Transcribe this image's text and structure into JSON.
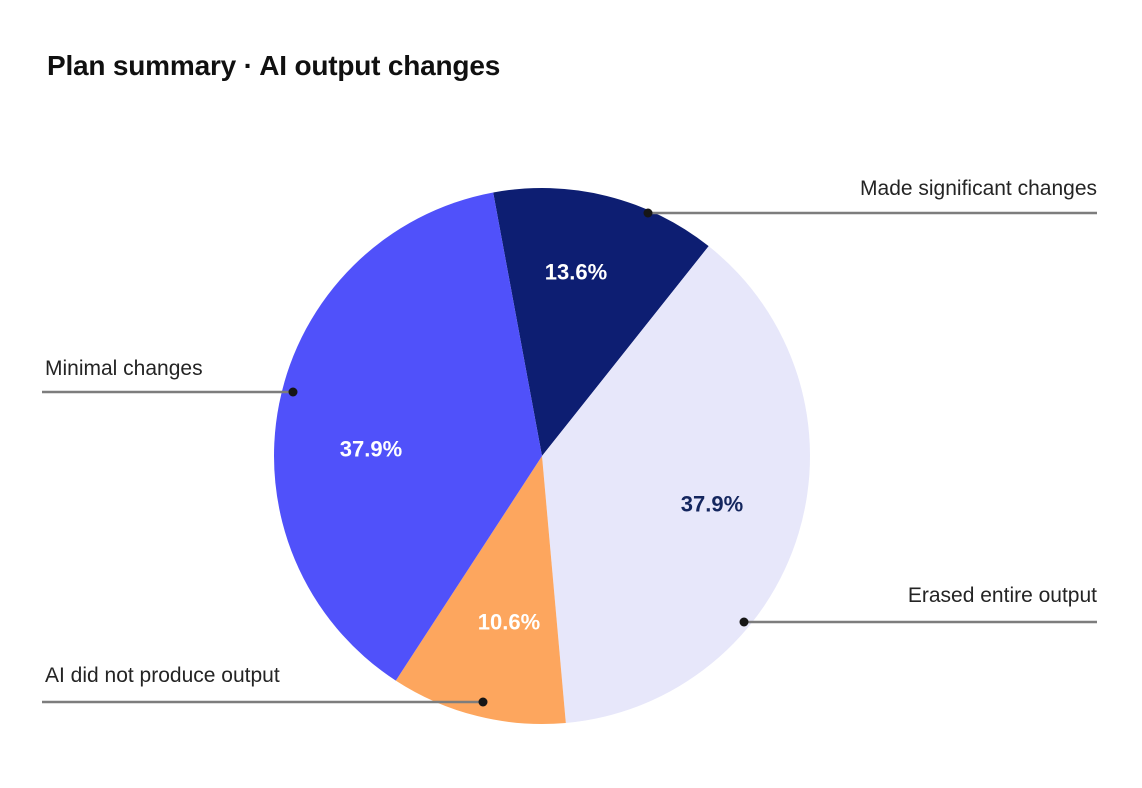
{
  "header": {
    "title": "Plan summary · AI output changes"
  },
  "chart_data": {
    "type": "pie",
    "title": "Plan summary · AI output changes",
    "direction": "clockwise",
    "start_angle_deg_from_12oclock": -10.5,
    "legend_position": "outside-callouts",
    "slices": [
      {
        "id": "made-significant-changes",
        "label": "Made significant changes",
        "value": 13.6,
        "value_label": "13.6%",
        "color": "#0d1e72",
        "value_label_color": "#ffffff"
      },
      {
        "id": "erased-entire-output",
        "label": "Erased entire output",
        "value": 37.9,
        "value_label": "37.9%",
        "color": "#e7e7fa",
        "value_label_color": "#14265e"
      },
      {
        "id": "ai-did-not-produce-output",
        "label": "AI did not produce output",
        "value": 10.6,
        "value_label": "10.6%",
        "color": "#fda65e",
        "value_label_color": "#ffffff"
      },
      {
        "id": "minimal-changes",
        "label": "Minimal changes",
        "value": 37.9,
        "value_label": "37.9%",
        "color": "#5051fa",
        "value_label_color": "#ffffff"
      }
    ],
    "callout_line_color": "#7d7d7d",
    "callout_dot_color": "#161616",
    "callout_text_color": "#242424",
    "background_color": "#ffffff"
  }
}
